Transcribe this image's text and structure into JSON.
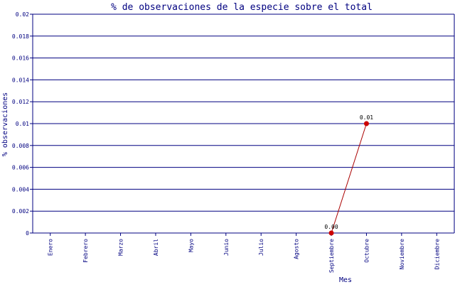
{
  "chart_data": {
    "type": "line",
    "title": "% de observaciones de la especie sobre el total",
    "xlabel": "Mes",
    "ylabel": "% observaciones",
    "categories": [
      "Enero",
      "Febrero",
      "Marzo",
      "Abril",
      "Mayo",
      "Junio",
      "Julio",
      "Agosto",
      "Septiembre",
      "Octubre",
      "Noviembre",
      "Diciembre"
    ],
    "ylim": [
      0,
      0.02
    ],
    "yticks": [
      "0",
      "0.002",
      "0.004",
      "0.006",
      "0.008",
      "0.01",
      "0.012",
      "0.014",
      "0.016",
      "0.018",
      "0.02"
    ],
    "series": [
      {
        "points": [
          {
            "x": "Septiembre",
            "y": 0.0,
            "label": "0.00"
          },
          {
            "x": "Octubre",
            "y": 0.01,
            "label": "0.01"
          }
        ]
      }
    ],
    "grid": true,
    "colors": {
      "axis": "#000080",
      "text": "#000080",
      "line": "#aa0000",
      "marker": "#cc0000"
    }
  }
}
